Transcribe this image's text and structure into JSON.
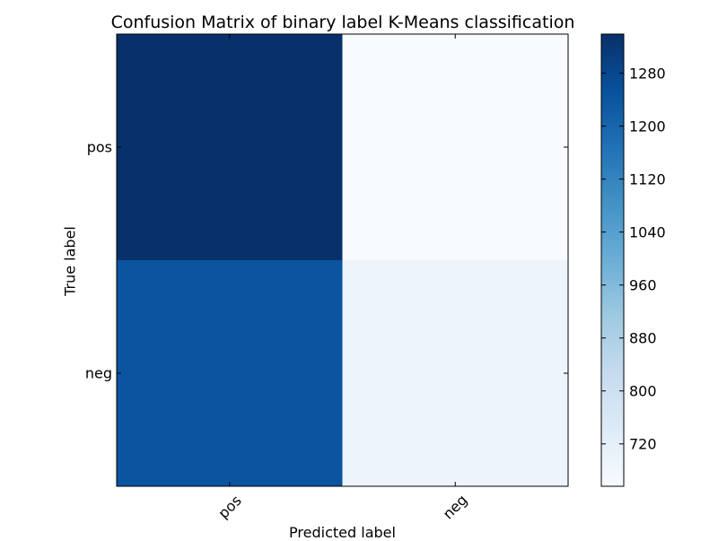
{
  "chart_data": {
    "type": "heatmap",
    "title": "Confusion Matrix of binary label K-Means classification",
    "xlabel": "Predicted label",
    "ylabel": "True label",
    "x_categories": [
      "pos",
      "neg"
    ],
    "y_categories": [
      "pos",
      "neg"
    ],
    "values": [
      [
        1339,
        656
      ],
      [
        1245,
        691
      ]
    ],
    "colormap": "Blues",
    "colorbar": {
      "range": [
        656,
        1339
      ],
      "ticks": [
        "720",
        "800",
        "880",
        "960",
        "1040",
        "1120",
        "1200",
        "1280"
      ]
    }
  }
}
